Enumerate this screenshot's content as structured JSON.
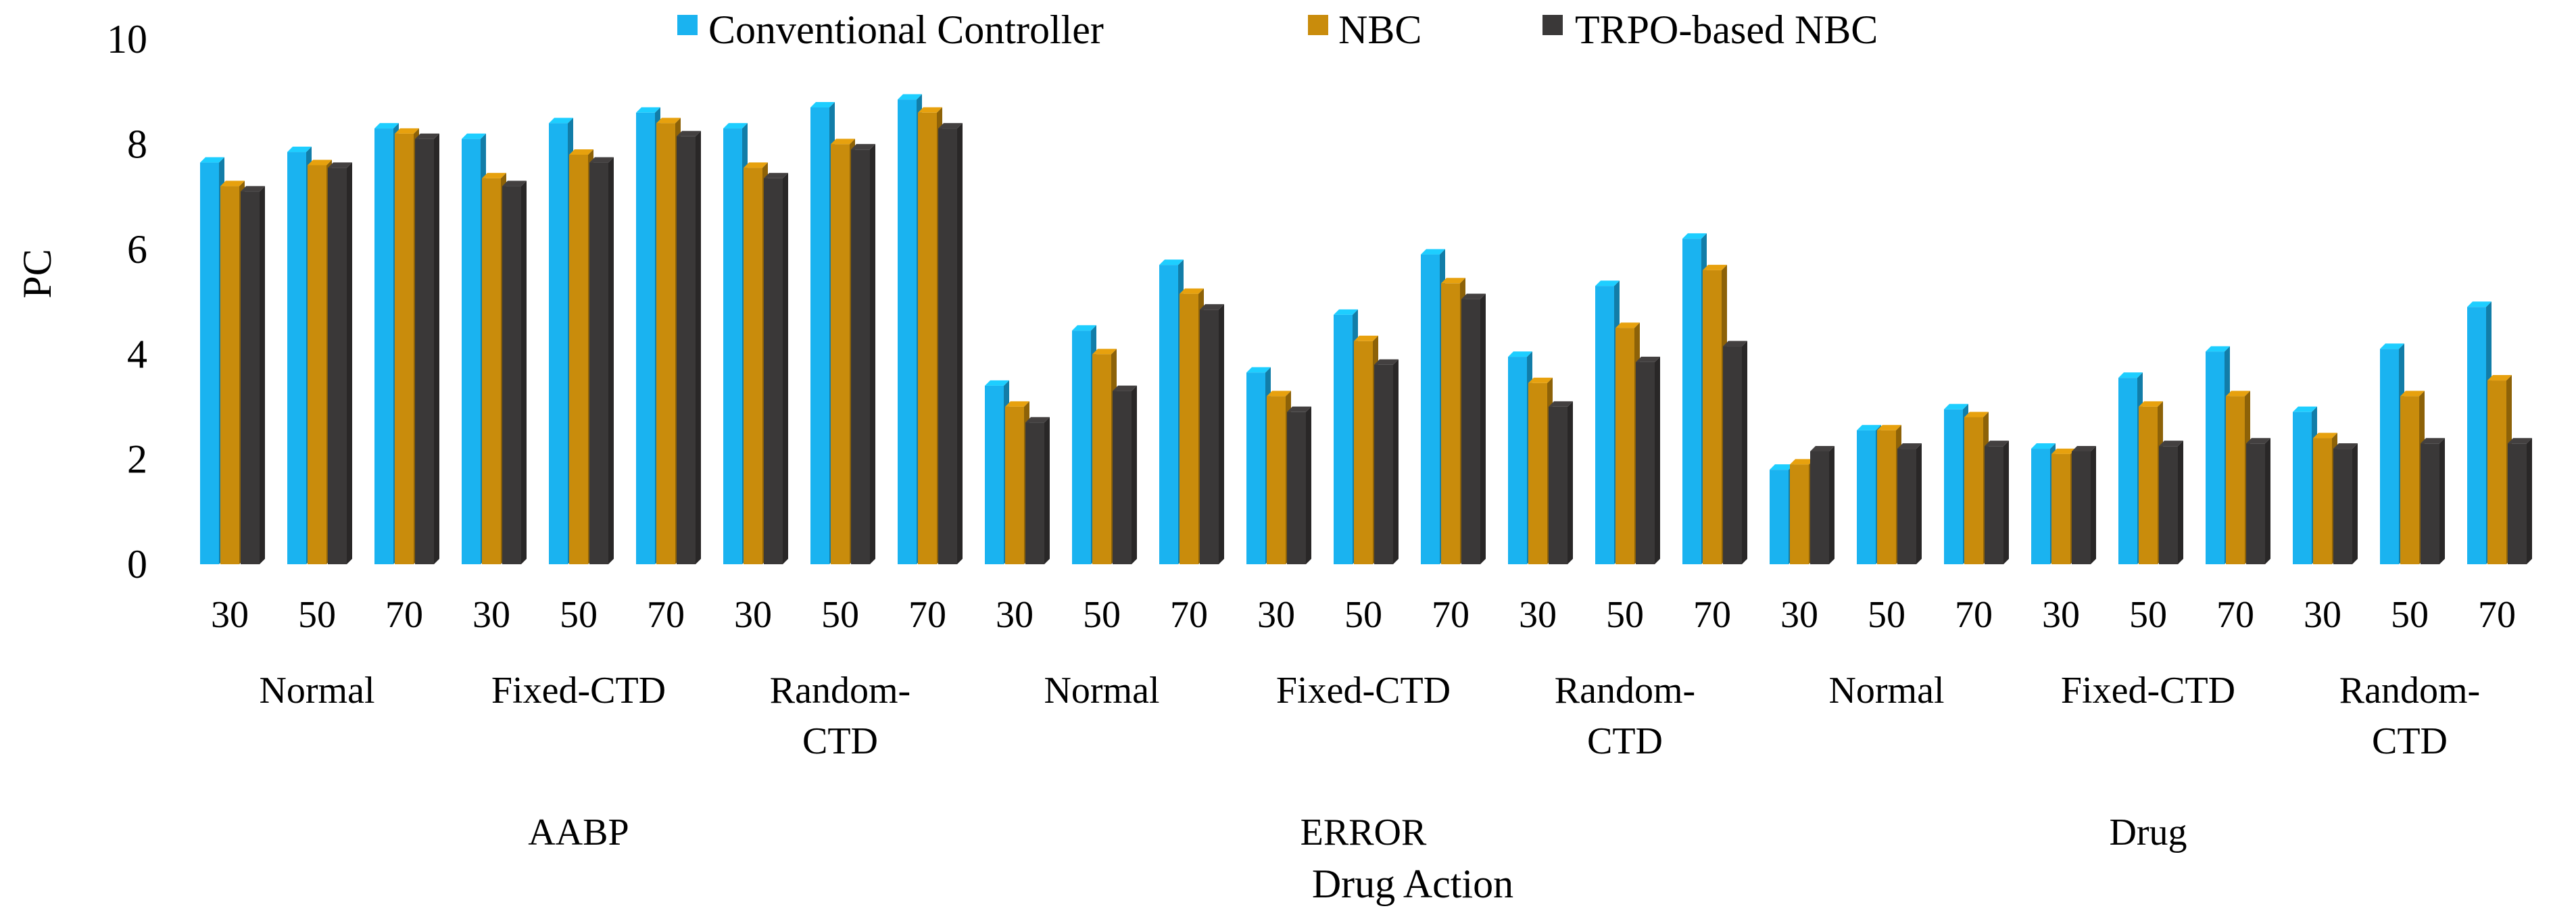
{
  "chart_data": {
    "type": "bar",
    "title": "",
    "xlabel": "Drug Action",
    "ylabel": "PC",
    "ylim": [
      0,
      10
    ],
    "yticks": [
      "0",
      "2",
      "4",
      "6",
      "8",
      "10"
    ],
    "grid": false,
    "legend_position": "top-center",
    "groups": [
      {
        "label": "AABP",
        "subgroups": [
          {
            "label": "Normal",
            "categories": [
              "30",
              "50",
              "70"
            ]
          },
          {
            "label": "Fixed-CTD",
            "categories": [
              "30",
              "50",
              "70"
            ]
          },
          {
            "label": "Random-CTD",
            "label_lines": [
              "Random-",
              "CTD"
            ],
            "categories": [
              "30",
              "50",
              "70"
            ]
          }
        ]
      },
      {
        "label": "ERROR",
        "subgroups": [
          {
            "label": "Normal",
            "categories": [
              "30",
              "50",
              "70"
            ]
          },
          {
            "label": "Fixed-CTD",
            "categories": [
              "30",
              "50",
              "70"
            ]
          },
          {
            "label": "Random-CTD",
            "label_lines": [
              "Random-",
              "CTD"
            ],
            "categories": [
              "30",
              "50",
              "70"
            ]
          }
        ]
      },
      {
        "label": "Drug",
        "subgroups": [
          {
            "label": "Normal",
            "categories": [
              "30",
              "50",
              "70"
            ]
          },
          {
            "label": "Fixed-CTD",
            "categories": [
              "30",
              "50",
              "70"
            ]
          },
          {
            "label": "Random-CTD",
            "label_lines": [
              "Random-",
              "CTD"
            ],
            "categories": [
              "30",
              "50",
              "70"
            ]
          }
        ]
      }
    ],
    "series": [
      {
        "name": "Conventional Controller",
        "color": "#1ab3f0",
        "values": [
          7.65,
          7.85,
          8.3,
          8.1,
          8.4,
          8.6,
          8.3,
          8.7,
          8.85,
          3.4,
          4.45,
          5.7,
          3.65,
          4.75,
          5.9,
          3.95,
          5.3,
          6.2,
          1.8,
          2.55,
          2.95,
          2.2,
          3.55,
          4.05,
          2.9,
          4.1,
          4.9
        ]
      },
      {
        "name": "NBC",
        "color": "#c98c0c",
        "values": [
          7.2,
          7.6,
          8.2,
          7.35,
          7.8,
          8.4,
          7.55,
          8.0,
          8.6,
          3.0,
          4.0,
          5.15,
          3.2,
          4.25,
          5.35,
          3.45,
          4.5,
          5.6,
          1.9,
          2.55,
          2.8,
          2.1,
          3.0,
          3.2,
          2.4,
          3.2,
          3.5
        ]
      },
      {
        "name": "TRPO-based NBC",
        "color": "#3a3838",
        "values": [
          7.1,
          7.55,
          8.1,
          7.2,
          7.65,
          8.15,
          7.35,
          7.9,
          8.3,
          2.7,
          3.3,
          4.85,
          2.9,
          3.8,
          5.05,
          3.0,
          3.85,
          4.15,
          2.15,
          2.2,
          2.25,
          2.15,
          2.25,
          2.3,
          2.2,
          2.3,
          2.3
        ]
      }
    ]
  }
}
